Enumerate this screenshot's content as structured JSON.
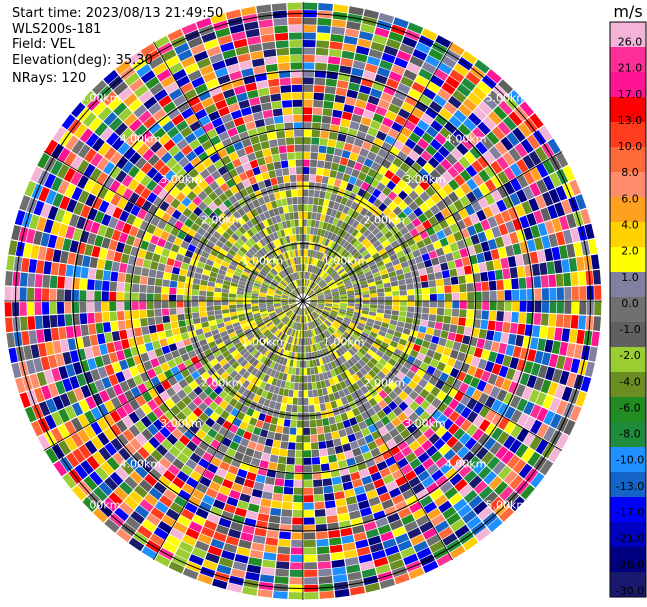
{
  "header": {
    "start_time": "Start time: 2023/08/13 21:49:50",
    "instrument": "WLS200s-181",
    "field": "Field: VEL",
    "elevation": "Elevation(deg): 35.30",
    "nrays": "NRays: 120"
  },
  "chart_data": {
    "type": "heatmap",
    "projection": "polar-ppi",
    "field": "VEL",
    "units": "m/s",
    "n_rays": 120,
    "range_rings_km": [
      1.0,
      2.0,
      3.0,
      4.0,
      5.0
    ],
    "ring_labels": [
      "1.00km",
      "2.00km",
      "3.00km",
      "4.00km",
      "5.00km"
    ],
    "colorbar_ticks": [
      26.0,
      21.0,
      17.0,
      13.0,
      10.0,
      8.0,
      6.0,
      4.0,
      2.0,
      1.0,
      0.0,
      -1.0,
      -2.0,
      -4.0,
      -6.0,
      -8.0,
      -10.0,
      -13.0,
      -17.0,
      -21.0,
      -26.0,
      -30.0
    ],
    "colorbar_tick_labels": [
      "26.0",
      "21.0",
      "17.0",
      "13.0",
      "10.0",
      "8.0",
      "6.0",
      "4.0",
      "2.0",
      "1.0",
      "0.0",
      "-1.0",
      "-2.0",
      "-4.0",
      "-6.0",
      "-8.0",
      "-10.0",
      "-13.0",
      "-17.0",
      "-21.0",
      "-26.0",
      "-30.0"
    ],
    "colorbar_colors": [
      "#f3b4d8",
      "#ff2d96",
      "#ff1493",
      "#ff0000",
      "#ff3c1e",
      "#ff6a3a",
      "#ff8c6a",
      "#ffa020",
      "#ffd200",
      "#ffff00",
      "#8080a0",
      "#707070",
      "#606060",
      "#9acd32",
      "#6b8e23",
      "#228b22",
      "#1e8c3c",
      "#1e90ff",
      "#1464c8",
      "#0000ff",
      "#0000c0",
      "#000080",
      "#191970"
    ],
    "ring_color": "#000000",
    "spoke_angles_deg": [
      0,
      30,
      60,
      90,
      120,
      150,
      180,
      210,
      240,
      270,
      300,
      330
    ]
  }
}
